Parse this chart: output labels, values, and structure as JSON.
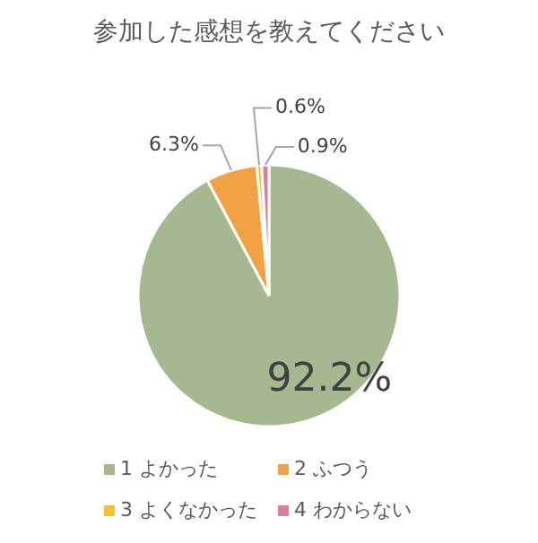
{
  "chart_data": {
    "type": "pie",
    "title": "参加した感想を教えてください",
    "categories": [
      "1 よかった",
      "2 ふつう",
      "3 よくなかった",
      "4 わからない"
    ],
    "values": [
      92.2,
      6.3,
      0.6,
      0.9
    ],
    "colors": [
      "#a5b88f",
      "#f2a245",
      "#f0c233",
      "#d4809e"
    ],
    "value_labels": [
      "92.2%",
      "6.3%",
      "0.6%",
      "0.9%"
    ],
    "legend": "bottom"
  }
}
